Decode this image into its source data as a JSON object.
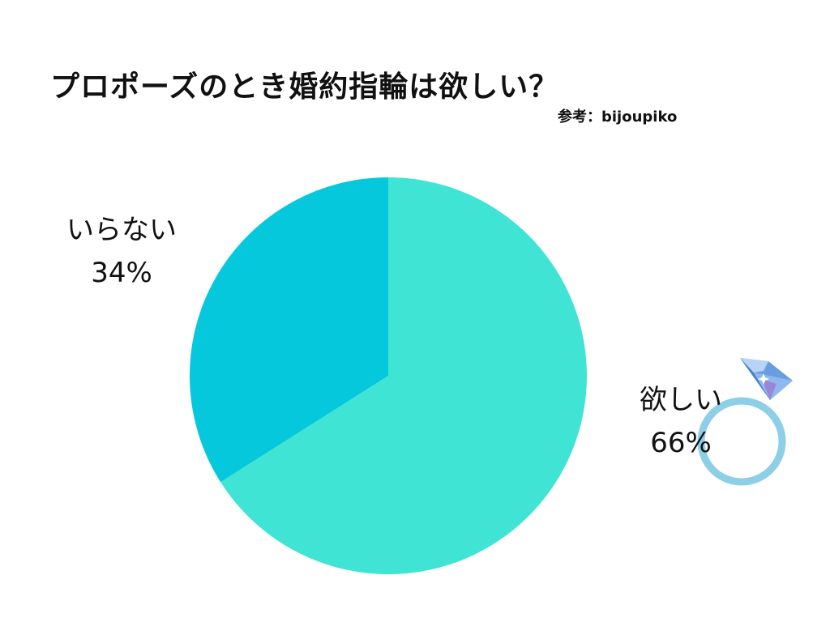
{
  "title": "プロポーズのとき婚約指輪は欲しい？",
  "source": "参考：bijoupiko",
  "chart_data": {
    "type": "pie",
    "start": "12 o'clock",
    "direction": "clockwise",
    "slices": [
      {
        "label": "欲しい",
        "value": 66,
        "value_label": "66%",
        "color": "#3fe4d4"
      },
      {
        "label": "いらない",
        "value": 34,
        "value_label": "34%",
        "color": "#06c8dc"
      }
    ]
  },
  "decoration": {
    "icon": "diamond-ring-icon",
    "ring_color": "#8ccfe6",
    "gem_color": "#6a9de0"
  }
}
